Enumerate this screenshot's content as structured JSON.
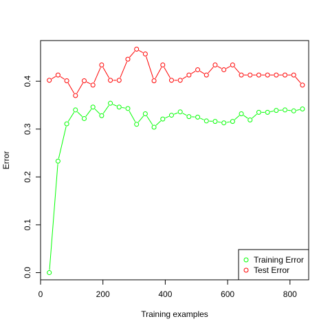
{
  "chart_data": {
    "type": "line",
    "xlabel": "Training examples",
    "ylabel": "Error",
    "xlim": [
      0,
      860
    ],
    "ylim": [
      -0.015,
      0.485
    ],
    "x_ticks": [
      0,
      200,
      400,
      600,
      800
    ],
    "y_ticks": [
      0.0,
      0.1,
      0.2,
      0.3,
      0.4
    ],
    "x_tick_labels": [
      "0",
      "200",
      "400",
      "600",
      "800"
    ],
    "y_tick_labels": [
      "0.0",
      "0.1",
      "0.2",
      "0.3",
      "0.4"
    ],
    "legend_position": "bottom-right",
    "x": [
      28,
      56,
      84,
      112,
      140,
      168,
      196,
      224,
      252,
      280,
      308,
      336,
      364,
      392,
      420,
      448,
      476,
      504,
      532,
      560,
      588,
      616,
      644,
      672,
      700,
      728,
      756,
      784,
      812,
      840
    ],
    "series": [
      {
        "name": "Training Error",
        "color": "#00ff00",
        "values": [
          0.0,
          0.233,
          0.311,
          0.34,
          0.322,
          0.346,
          0.328,
          0.354,
          0.346,
          0.343,
          0.31,
          0.332,
          0.304,
          0.321,
          0.329,
          0.336,
          0.326,
          0.325,
          0.317,
          0.316,
          0.313,
          0.316,
          0.332,
          0.319,
          0.335,
          0.335,
          0.339,
          0.34,
          0.338,
          0.342
        ]
      },
      {
        "name": "Test Error",
        "color": "#ff0000",
        "values": [
          0.402,
          0.413,
          0.401,
          0.37,
          0.401,
          0.392,
          0.434,
          0.402,
          0.402,
          0.446,
          0.467,
          0.457,
          0.401,
          0.434,
          0.402,
          0.402,
          0.413,
          0.424,
          0.413,
          0.434,
          0.424,
          0.434,
          0.413,
          0.413,
          0.413,
          0.413,
          0.413,
          0.413,
          0.413,
          0.392
        ]
      }
    ]
  }
}
